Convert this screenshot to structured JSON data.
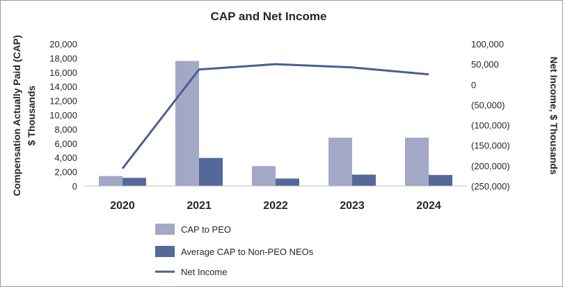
{
  "chart_data": {
    "type": "bar",
    "title": "CAP and Net Income",
    "categories": [
      "2020",
      "2021",
      "2022",
      "2023",
      "2024"
    ],
    "ylabel_line1": "Compensation Actually Paid (CAP)",
    "ylabel_line2": "$ Thousands",
    "y2label": "Net Income, $ Thousands",
    "ylim": [
      0,
      20000
    ],
    "y_ticks": [
      0,
      2000,
      4000,
      6000,
      8000,
      10000,
      12000,
      14000,
      16000,
      18000,
      20000
    ],
    "y_tick_labels": [
      "0",
      "2,000",
      "4,000",
      "6,000",
      "8,000",
      "10,000",
      "12,000",
      "14,000",
      "16,000",
      "18,000",
      "20,000"
    ],
    "y2lim": [
      -250000,
      100000
    ],
    "y2_ticks": [
      100000,
      50000,
      0,
      -50000,
      -100000,
      -150000,
      -200000,
      -250000
    ],
    "y2_tick_labels": [
      "100,000",
      "50,000",
      "0",
      "(50,000)",
      "(100,000)",
      "(150,000)",
      "(200,000)",
      "(250,000)"
    ],
    "series": [
      {
        "name": "CAP to PEO",
        "type": "bar",
        "axis": "left",
        "color": "#a2a8c6",
        "values": [
          1400,
          17600,
          2800,
          6800,
          6800
        ]
      },
      {
        "name": "Average CAP to Non-PEO NEOs",
        "type": "bar",
        "axis": "left",
        "color": "#55689a",
        "values": [
          1150,
          3950,
          1050,
          1600,
          1550
        ]
      },
      {
        "name": "Net Income",
        "type": "line",
        "axis": "right",
        "color": "#4a5e92",
        "values": [
          -207000,
          37000,
          50000,
          42000,
          25000
        ]
      }
    ],
    "legend_position": "bottom"
  }
}
